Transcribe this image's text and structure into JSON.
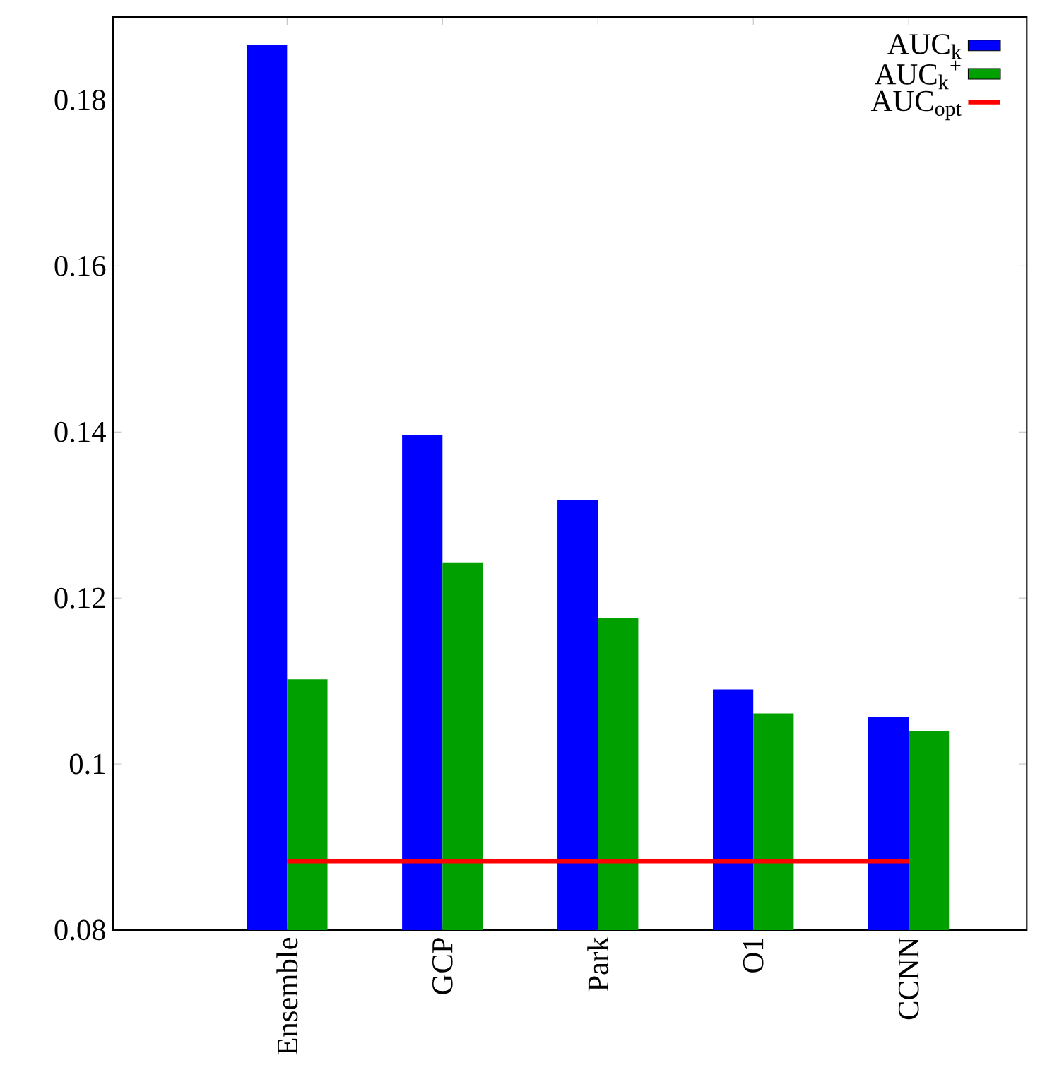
{
  "chart_data": {
    "type": "bar",
    "categories": [
      "Ensemble",
      "GCP",
      "Park",
      "O1",
      "CCNN"
    ],
    "series": [
      {
        "name": "AUC$_{k}$",
        "color": "#0000ff",
        "values": [
          0.1866,
          0.1396,
          0.1318,
          0.109,
          0.1057
        ]
      },
      {
        "name": "AUC$_{k}$$^{+}$",
        "color": "#00a000",
        "values": [
          0.1102,
          0.1243,
          0.1176,
          0.1061,
          0.104
        ]
      }
    ],
    "ref_lines": [
      {
        "axis": "y",
        "value": 0.0883,
        "label": "AUC$_{opt}$",
        "color": "#ff0000"
      }
    ],
    "ylim": [
      0.08,
      0.19
    ],
    "yticks": [
      {
        "value": 0.08,
        "label": "0.08"
      },
      {
        "value": 0.1,
        "label": "0.1"
      },
      {
        "value": 0.12,
        "label": "0.12"
      },
      {
        "value": 0.14,
        "label": "0.14"
      },
      {
        "value": 0.16,
        "label": "0.16"
      },
      {
        "value": 0.18,
        "label": "0.18"
      }
    ],
    "legend": "top right"
  }
}
